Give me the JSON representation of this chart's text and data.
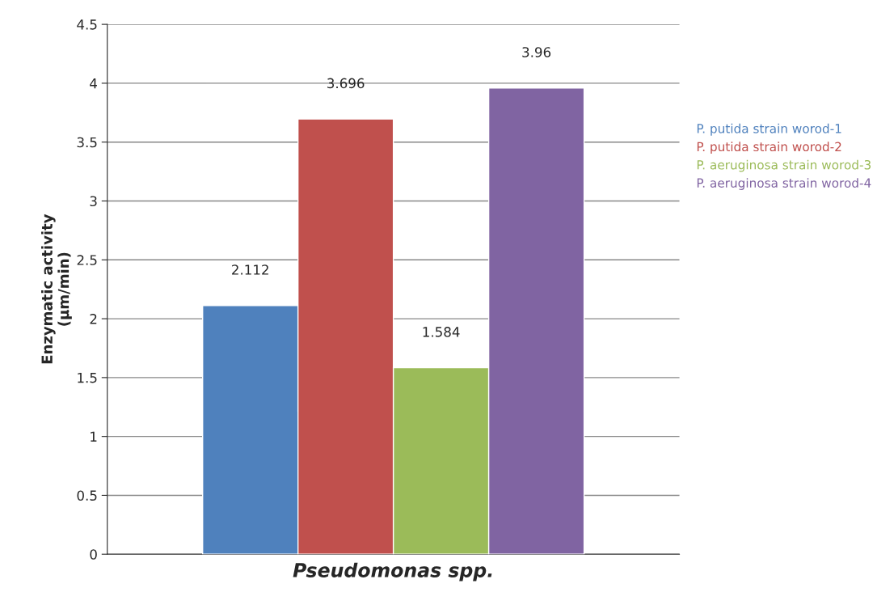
{
  "chart_data": {
    "type": "bar",
    "xlabel": "Pseudomonas spp.",
    "ylabel": "Enzymatic activity\n(µm/min)",
    "categories": [
      null
    ],
    "series": [
      {
        "name": "P. putida strain worod-1",
        "color": "#4f81bd",
        "values": [
          2.112
        ]
      },
      {
        "name": "P. putida strain worod-2",
        "color": "#c0504d",
        "values": [
          3.696
        ]
      },
      {
        "name": "P. aeruginosa strain worod-3",
        "color": "#9bbb59",
        "values": [
          1.584
        ]
      },
      {
        "name": "P. aeruginosa strain worod-4",
        "color": "#8064a2",
        "values": [
          3.96
        ]
      }
    ],
    "ylim": [
      0,
      4.5
    ],
    "yticks": [
      0,
      0.5,
      1,
      1.5,
      2,
      2.5,
      3,
      3.5,
      4,
      4.5
    ],
    "grid": "y",
    "legend": "right",
    "data_labels": true
  }
}
